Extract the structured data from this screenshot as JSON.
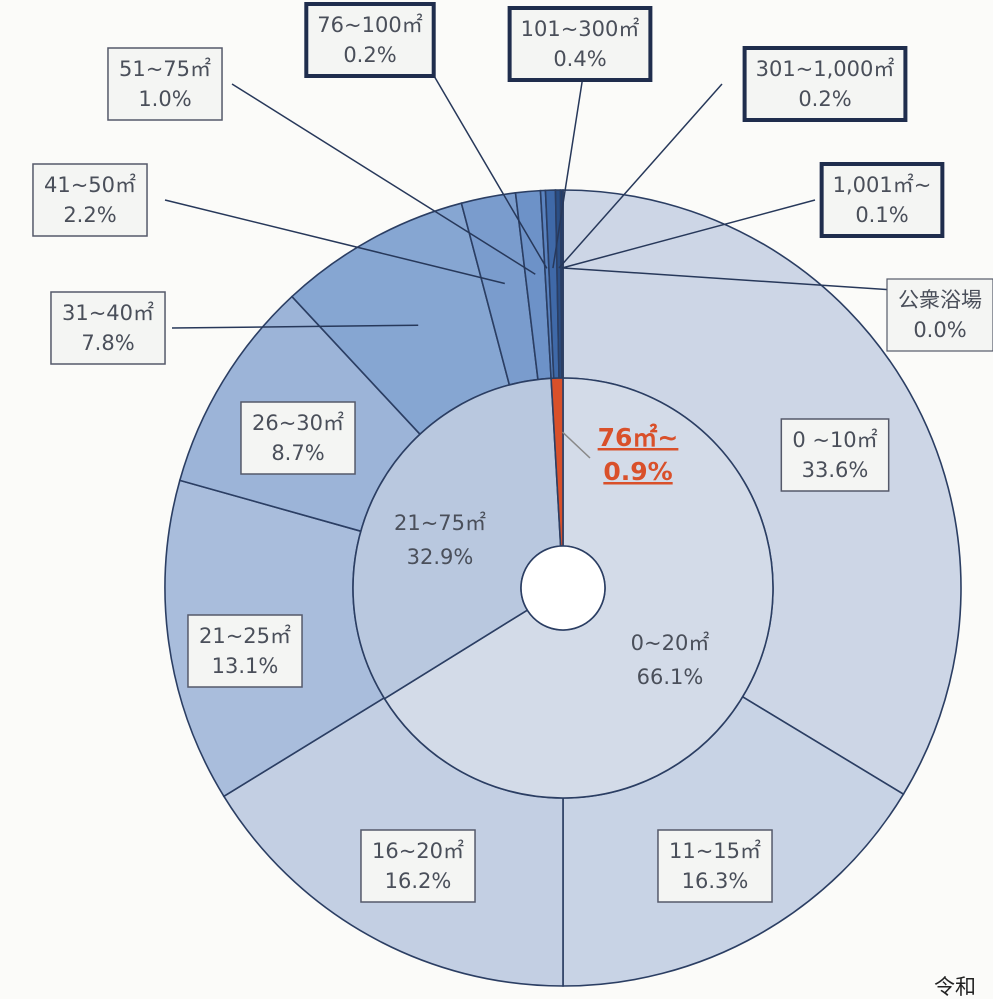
{
  "chart_data": {
    "type": "donut",
    "outer": {
      "categories": [
        "0 ~10㎡",
        "11~15㎡",
        "16~20㎡",
        "21~25㎡",
        "26~30㎡",
        "31~40㎡",
        "41~50㎡",
        "51~75㎡",
        "76~100㎡",
        "101~300㎡",
        "301~1,000㎡",
        "1,001㎡~",
        "公衆浴場"
      ],
      "values": [
        33.6,
        16.3,
        16.2,
        13.1,
        8.7,
        7.8,
        2.2,
        1.0,
        0.2,
        0.4,
        0.2,
        0.1,
        0.0
      ],
      "value_labels": [
        "33.6%",
        "16.3%",
        "16.2%",
        "13.1%",
        "8.7%",
        "7.8%",
        "2.2%",
        "1.0%",
        "0.2%",
        "0.4%",
        "0.2%",
        "0.1%",
        "0.0%"
      ],
      "colors": [
        "#cdd6e6",
        "#c8d3e5",
        "#c3cfe3",
        "#a9bddc",
        "#9cb4d8",
        "#86a6d2",
        "#7a9ccd",
        "#6d92c8",
        "#5a83c0",
        "#3f69a8",
        "#2b4f86",
        "#1f3c6e",
        "#1a3260"
      ]
    },
    "inner": {
      "categories": [
        "0~20㎡",
        "21~75㎡",
        "76㎡~"
      ],
      "values": [
        66.1,
        32.9,
        0.9
      ],
      "value_labels": [
        "66.1%",
        "32.9%",
        "0.9%"
      ],
      "colors": [
        "#d3dbe8",
        "#b9c8df",
        "#d9502a"
      ]
    },
    "annotation": "令和"
  }
}
